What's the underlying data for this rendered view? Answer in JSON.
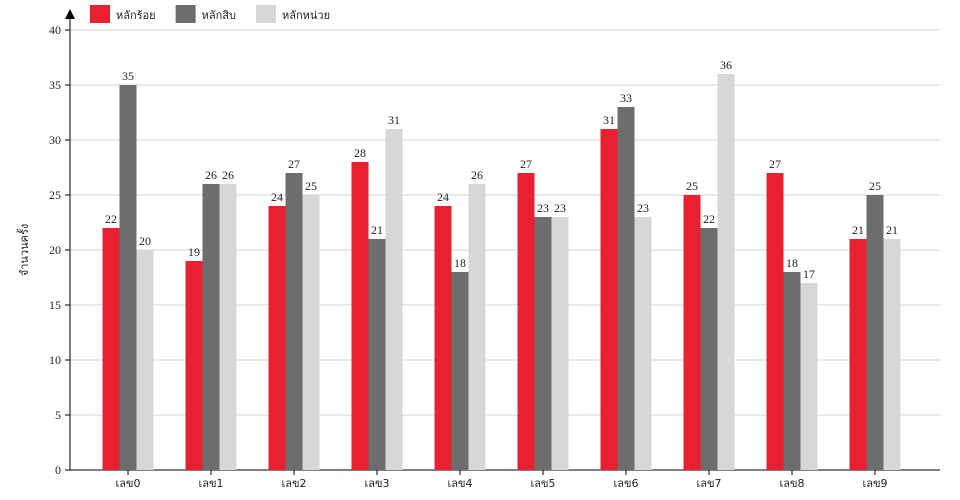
{
  "chart_data": {
    "type": "bar",
    "y_label": "จำนวนครั้ง",
    "categories": [
      "เลข0",
      "เลข1",
      "เลข2",
      "เลข3",
      "เลข4",
      "เลข5",
      "เลข6",
      "เลข7",
      "เลข8",
      "เลข9"
    ],
    "series": [
      {
        "name": "หลักร้อย",
        "color": "#e8202f",
        "values": [
          22,
          19,
          24,
          28,
          24,
          27,
          31,
          25,
          27,
          21
        ]
      },
      {
        "name": "หลักสิบ",
        "color": "#6d6d6d",
        "values": [
          35,
          26,
          27,
          21,
          18,
          23,
          33,
          22,
          18,
          25
        ]
      },
      {
        "name": "หลักหน่วย",
        "color": "#d7d7d7",
        "values": [
          20,
          26,
          25,
          31,
          26,
          23,
          23,
          36,
          17,
          21
        ]
      }
    ],
    "ylim": [
      0,
      40
    ],
    "yticks": [
      0,
      5,
      10,
      15,
      20,
      25,
      30,
      35,
      40
    ],
    "grid": true,
    "legend": "top-left"
  }
}
